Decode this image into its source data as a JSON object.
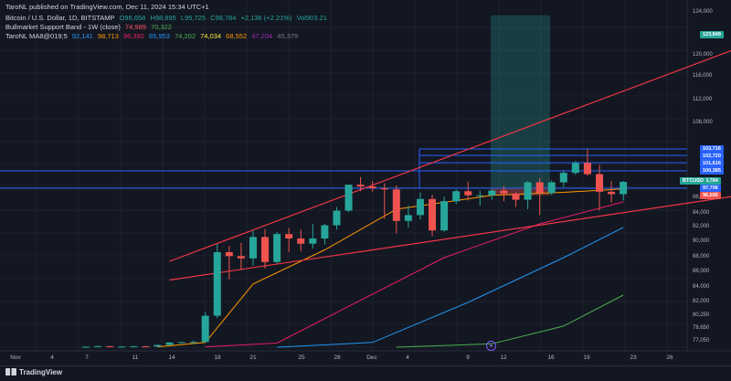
{
  "publisher": "TaroNL published on TradingView.com, Dec 11, 2024 15:34 UTC+1",
  "legend": {
    "symbol": "Bitcoin / U.S. Dollar, 1D, BITSTAMP",
    "ohlc": [
      "O96,658",
      "H98,895",
      "L95,725",
      "C98,784",
      "+2,136 (+2.21%)",
      "Vol903.21"
    ],
    "band_title": "Bullmarket Support Band - 1W (close)",
    "band_values": [
      "74,989",
      "70,322"
    ],
    "ma_title": "TaroNL MA8@019;5",
    "ma_values": [
      "92,141",
      "98,713",
      "96,392",
      "85,953",
      "74,202",
      "74,034",
      "68,552",
      "47,204",
      "45,379"
    ]
  },
  "colors": {
    "background": "#131722",
    "up": "#26a69a",
    "down": "#ef5350",
    "hline": "#2962ff",
    "channel": "#f23645",
    "ma_orange": "#ff9800",
    "ma_pink": "#e91e63",
    "ma_blue": "#2196f3",
    "ma_green": "#4caf50"
  },
  "price_axis": [
    "124,000",
    "120,000",
    "116,000",
    "112,000",
    "108,000",
    "96,000",
    "94,000",
    "92,000",
    "90,000",
    "88,000",
    "86,000",
    "84,000",
    "82,000",
    "80,250",
    "78,650",
    "77,050"
  ],
  "price_tags": [
    {
      "text": "123,849",
      "bg": "#26a69a"
    },
    {
      "text": "103,716",
      "bg": "#2962ff"
    },
    {
      "text": "102,720",
      "bg": "#2962ff"
    },
    {
      "text": "101,616",
      "bg": "#2962ff"
    },
    {
      "text": "100,385",
      "bg": "#2962ff"
    },
    {
      "text": "98,784",
      "bg": "#26a69a"
    },
    {
      "text": "BTCUSD",
      "bg": "#26a69a"
    },
    {
      "text": "97,706",
      "bg": "#2962ff"
    },
    {
      "text": "96,500",
      "bg": "#ef5350"
    }
  ],
  "time_axis": [
    "Nov",
    "4",
    "7",
    "11",
    "14",
    "18",
    "21",
    "25",
    "28",
    "Dec",
    "4",
    "9",
    "12",
    "16",
    "19",
    "23",
    "26"
  ],
  "tv_logo": "TradingView",
  "goto_icon": "+",
  "chart_data": {
    "type": "candlestick",
    "symbol": "BTCUSD",
    "candles": [
      {
        "o": 69500,
        "h": 70300,
        "l": 68800,
        "c": 69600
      },
      {
        "o": 70100,
        "h": 71300,
        "l": 69700,
        "c": 70500
      },
      {
        "o": 70400,
        "h": 71200,
        "l": 69600,
        "c": 70000
      },
      {
        "o": 69800,
        "h": 70600,
        "l": 68900,
        "c": 69900
      },
      {
        "o": 69900,
        "h": 70800,
        "l": 69100,
        "c": 70200
      },
      {
        "o": 70200,
        "h": 71000,
        "l": 69500,
        "c": 69900
      },
      {
        "o": 69900,
        "h": 72800,
        "l": 69600,
        "c": 72300
      },
      {
        "o": 72300,
        "h": 76600,
        "l": 72100,
        "c": 75800
      },
      {
        "o": 75800,
        "h": 77000,
        "l": 75100,
        "c": 76400
      },
      {
        "o": 76400,
        "h": 77200,
        "l": 75600,
        "c": 76600
      },
      {
        "o": 76600,
        "h": 80800,
        "l": 76400,
        "c": 80300
      },
      {
        "o": 80300,
        "h": 89800,
        "l": 80000,
        "c": 88700
      },
      {
        "o": 88700,
        "h": 89500,
        "l": 85100,
        "c": 88200
      },
      {
        "o": 88200,
        "h": 89900,
        "l": 86300,
        "c": 87900
      },
      {
        "o": 87900,
        "h": 91600,
        "l": 86900,
        "c": 90700
      },
      {
        "o": 90700,
        "h": 91800,
        "l": 86500,
        "c": 87400
      },
      {
        "o": 87400,
        "h": 91400,
        "l": 87200,
        "c": 91100
      },
      {
        "o": 91100,
        "h": 91900,
        "l": 88700,
        "c": 90500
      },
      {
        "o": 90500,
        "h": 91700,
        "l": 88800,
        "c": 89800
      },
      {
        "o": 89800,
        "h": 92500,
        "l": 89200,
        "c": 90500
      },
      {
        "o": 90500,
        "h": 92500,
        "l": 89700,
        "c": 92300
      },
      {
        "o": 92300,
        "h": 94800,
        "l": 91700,
        "c": 94300
      },
      {
        "o": 94300,
        "h": 98200,
        "l": 94100,
        "c": 98300
      },
      {
        "o": 98300,
        "h": 99500,
        "l": 97200,
        "c": 98000
      },
      {
        "o": 98000,
        "h": 98900,
        "l": 97100,
        "c": 97700
      },
      {
        "o": 97700,
        "h": 98500,
        "l": 93200,
        "c": 97500
      },
      {
        "o": 97500,
        "h": 98200,
        "l": 91200,
        "c": 92900
      },
      {
        "o": 92900,
        "h": 95000,
        "l": 92000,
        "c": 93700
      },
      {
        "o": 93700,
        "h": 97000,
        "l": 93100,
        "c": 95900
      },
      {
        "o": 95900,
        "h": 96600,
        "l": 90800,
        "c": 91600
      },
      {
        "o": 91600,
        "h": 96300,
        "l": 91400,
        "c": 95600
      },
      {
        "o": 95600,
        "h": 97500,
        "l": 95200,
        "c": 97200
      },
      {
        "o": 97200,
        "h": 98800,
        "l": 95700,
        "c": 96500
      },
      {
        "o": 96500,
        "h": 97300,
        "l": 95000,
        "c": 96500
      },
      {
        "o": 96500,
        "h": 97500,
        "l": 95800,
        "c": 97300
      },
      {
        "o": 97300,
        "h": 98100,
        "l": 95600,
        "c": 96800
      },
      {
        "o": 96800,
        "h": 97000,
        "l": 94800,
        "c": 95800
      },
      {
        "o": 95800,
        "h": 98900,
        "l": 94500,
        "c": 98700
      },
      {
        "o": 98700,
        "h": 99300,
        "l": 93700,
        "c": 96900
      },
      {
        "o": 96900,
        "h": 99000,
        "l": 96500,
        "c": 98700
      },
      {
        "o": 98700,
        "h": 100500,
        "l": 97900,
        "c": 100100
      },
      {
        "o": 100100,
        "h": 101900,
        "l": 99800,
        "c": 101600
      },
      {
        "o": 101600,
        "h": 103700,
        "l": 99700,
        "c": 99900
      },
      {
        "o": 99900,
        "h": 101300,
        "l": 94300,
        "c": 97100
      },
      {
        "o": 97100,
        "h": 98900,
        "l": 95400,
        "c": 96700
      },
      {
        "o": 96700,
        "h": 98900,
        "l": 95700,
        "c": 98784
      }
    ],
    "horizontal_levels": [
      103716,
      102720,
      101616,
      100385,
      97706
    ],
    "long_position": {
      "entry": 97706,
      "target": 123849,
      "stop": 96500
    },
    "channel": {
      "upper": [
        [
          7,
          87500
        ],
        [
          69,
          127000
        ]
      ],
      "lower": [
        [
          7,
          85000
        ],
        [
          69,
          100500
        ]
      ]
    },
    "ma_lines": [
      {
        "color": "#ff9800",
        "points": [
          [
            6,
            69600
          ],
          [
            10,
            76000
          ],
          [
            14,
            84500
          ],
          [
            20,
            89000
          ],
          [
            26,
            94500
          ],
          [
            34,
            96500
          ],
          [
            40,
            97000
          ],
          [
            45,
            97600
          ]
        ]
      },
      {
        "color": "#e91e63",
        "points": [
          [
            10,
            69500
          ],
          [
            16,
            75000
          ],
          [
            22,
            81500
          ],
          [
            30,
            88000
          ],
          [
            38,
            92500
          ],
          [
            45,
            95500
          ]
        ]
      },
      {
        "color": "#2196f3",
        "points": [
          [
            16,
            69000
          ],
          [
            24,
            76000
          ],
          [
            32,
            82000
          ],
          [
            40,
            88000
          ],
          [
            45,
            92000
          ]
        ]
      },
      {
        "color": "#4caf50",
        "points": [
          [
            26,
            69000
          ],
          [
            34,
            74000
          ],
          [
            40,
            79000
          ],
          [
            45,
            83000
          ]
        ]
      }
    ]
  }
}
